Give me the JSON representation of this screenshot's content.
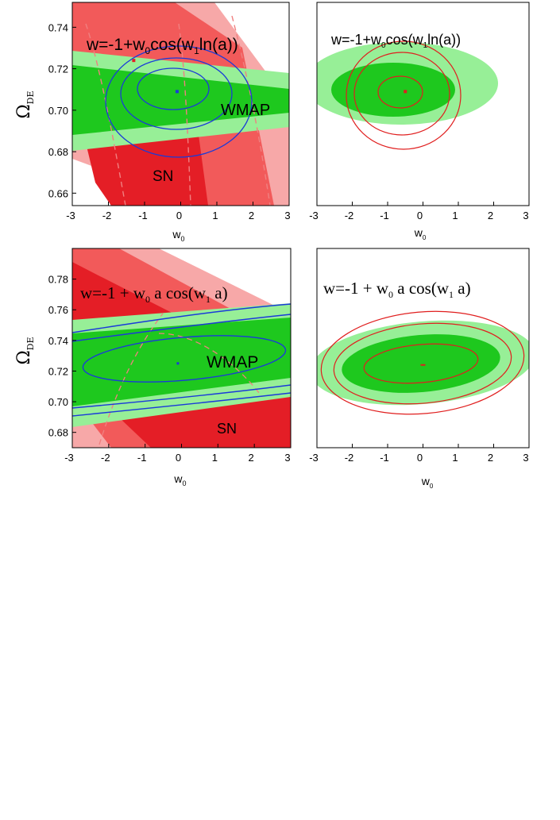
{
  "colors": {
    "sn_dark": "#e41e26",
    "sn_mid": "#f25a5a",
    "sn_light": "#f7a8a8",
    "wmap_dark": "#1ec81e",
    "wmap_light": "#97ef97",
    "wmap_contour": "#1a3ad9",
    "joint_contour": "#e01e1e",
    "sn_dashed": "#f08080"
  },
  "chart_data": [
    {
      "id": "panel-top-left",
      "type": "contour",
      "annotation": {
        "prefix": "w=-1+w",
        "sub0": "0",
        "mid": "cos(w",
        "sub1": "1",
        "suffix": "ln(a))"
      },
      "labels": [
        "WMAP",
        "SN"
      ],
      "xlabel": {
        "main": "w",
        "sub": "0"
      },
      "ylabel": {
        "main": "Ω",
        "sub": "DE"
      },
      "xlim": [
        -3,
        3
      ],
      "ylim": [
        0.654,
        0.752
      ],
      "xticks": [
        "-3",
        "-2",
        "-1",
        "0",
        "1",
        "2",
        "3"
      ],
      "yticks": [
        "0.66",
        "0.68",
        "0.70",
        "0.72",
        "0.74"
      ],
      "wmap_best_fit": {
        "w0": -0.1,
        "omega_de": 0.709
      },
      "sn_best_fit": {
        "w0": -1.3,
        "omega_de": 0.724
      },
      "wmap_band_center": {
        "at_w0_minus3": 0.716,
        "at_w0_plus3": 0.698
      }
    },
    {
      "id": "panel-top-right",
      "type": "contour",
      "annotation": {
        "prefix": "w=-1+w",
        "sub0": "0",
        "mid": "cos(w",
        "sub1": "1",
        "suffix": "ln(a))"
      },
      "labels": [],
      "xlabel": {
        "main": "w",
        "sub": "0"
      },
      "ylabel": {
        "main": "",
        "sub": ""
      },
      "xlim": [
        -3,
        3
      ],
      "ylim": [
        0.654,
        0.752
      ],
      "xticks": [
        "-3",
        "-2",
        "-1",
        "0",
        "1",
        "2",
        "3"
      ],
      "yticks": [],
      "joint_best_fit": {
        "w0": -0.5,
        "omega_de": 0.709
      }
    },
    {
      "id": "panel-bottom-left",
      "type": "contour",
      "annotation": {
        "prefix": "w=-1 + w",
        "sub0": "0",
        "mid": " a cos(w",
        "sub1": "1",
        "suffix": " a)"
      },
      "labels": [
        "WMAP",
        "SN"
      ],
      "xlabel": {
        "main": "w",
        "sub": "0"
      },
      "ylabel": {
        "main": "Ω",
        "sub": "DE"
      },
      "xlim": [
        -3,
        3
      ],
      "ylim": [
        0.67,
        0.8
      ],
      "xticks": [
        "-3",
        "-2",
        "-1",
        "0",
        "1",
        "2",
        "3"
      ],
      "yticks": [
        "0.68",
        "0.70",
        "0.72",
        "0.74",
        "0.76",
        "0.78"
      ],
      "wmap_best_fit": {
        "w0": -0.1,
        "omega_de": 0.725
      },
      "sn_best_fit": {
        "w0": -1.3,
        "omega_de": 0.731
      }
    },
    {
      "id": "panel-bottom-right",
      "type": "contour",
      "annotation": {
        "prefix": "w=-1 + w",
        "sub0": "0",
        "mid": " a cos(w",
        "sub1": "1",
        "suffix": " a)"
      },
      "labels": [],
      "xlabel": {
        "main": "w",
        "sub": "0"
      },
      "ylabel": {
        "main": "",
        "sub": ""
      },
      "xlim": [
        -3,
        3
      ],
      "ylim": [
        0.67,
        0.8
      ],
      "xticks": [
        "-3",
        "-2",
        "-1",
        "0",
        "1",
        "2",
        "3"
      ],
      "yticks": [],
      "joint_best_fit": {
        "w0": 0.0,
        "omega_de": 0.724
      }
    }
  ]
}
